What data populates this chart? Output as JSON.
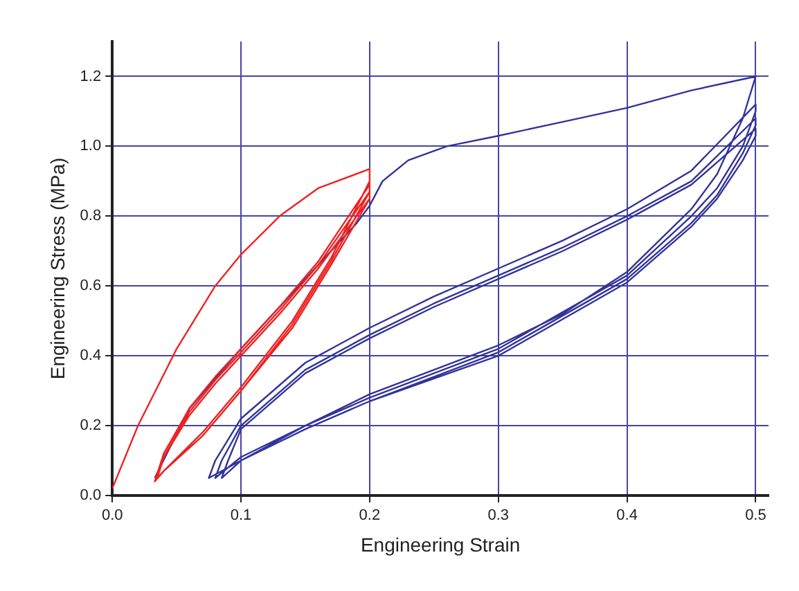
{
  "chart_data": {
    "type": "line",
    "xlabel": "Engineering Strain",
    "ylabel": "Engineering Stress (MPa)",
    "xlim": [
      0,
      0.51
    ],
    "ylim": [
      0,
      1.3
    ],
    "xticks": [
      {
        "value": 0,
        "label": "0.0"
      },
      0.1,
      0.2,
      0.3,
      0.4,
      0.5
    ],
    "yticks": [
      {
        "value": 0,
        "label": "0.0"
      },
      0.2,
      0.4,
      0.6,
      0.8,
      {
        "value": 1,
        "label": "1.0"
      },
      1.2
    ],
    "grid": true,
    "legend": false,
    "marker": "none",
    "line_style": "solid",
    "series": [
      {
        "color": "#ee2222",
        "x": [
          0,
          0.02,
          0.05,
          0.08,
          0.1,
          0.13,
          0.16,
          0.2,
          0.2,
          0.17,
          0.14,
          0.1,
          0.07,
          0.04,
          0.033,
          0.04,
          0.06,
          0.08,
          0.1,
          0.13,
          0.16,
          0.2,
          0.2,
          0.17,
          0.14,
          0.1,
          0.07,
          0.04,
          0.034,
          0.04,
          0.06,
          0.08,
          0.1,
          0.13,
          0.16,
          0.2,
          0.2,
          0.17,
          0.14,
          0.1,
          0.07,
          0.04,
          0.035,
          0.04,
          0.06,
          0.08,
          0.1,
          0.13,
          0.16,
          0.2
        ],
        "values": [
          0.02,
          0.2,
          0.42,
          0.6,
          0.69,
          0.8,
          0.88,
          0.935,
          0.9,
          0.68,
          0.5,
          0.31,
          0.18,
          0.07,
          0.04,
          0.12,
          0.25,
          0.34,
          0.42,
          0.54,
          0.67,
          0.89,
          0.87,
          0.67,
          0.49,
          0.3,
          0.17,
          0.07,
          0.045,
          0.11,
          0.24,
          0.33,
          0.41,
          0.53,
          0.66,
          0.87,
          0.85,
          0.66,
          0.48,
          0.3,
          0.17,
          0.07,
          0.05,
          0.11,
          0.23,
          0.32,
          0.4,
          0.52,
          0.65,
          0.85
        ]
      },
      {
        "color": "#333399",
        "x": [
          0.033,
          0.06,
          0.1,
          0.15,
          0.19,
          0.2,
          0.21,
          0.23,
          0.26,
          0.3,
          0.35,
          0.4,
          0.45,
          0.5,
          0.5,
          0.49,
          0.47,
          0.45,
          0.4,
          0.35,
          0.3,
          0.25,
          0.2,
          0.15,
          0.1,
          0.075,
          0.08,
          0.1,
          0.15,
          0.2,
          0.25,
          0.3,
          0.35,
          0.4,
          0.45,
          0.5,
          0.5,
          0.49,
          0.47,
          0.45,
          0.4,
          0.3,
          0.2,
          0.15,
          0.1,
          0.08,
          0.085,
          0.1,
          0.15,
          0.2,
          0.25,
          0.3,
          0.35,
          0.4,
          0.45,
          0.5,
          0.5,
          0.49,
          0.47,
          0.45,
          0.4,
          0.3,
          0.2,
          0.15,
          0.1,
          0.085,
          0.09,
          0.1,
          0.15,
          0.2,
          0.25,
          0.3,
          0.35,
          0.4,
          0.45,
          0.5,
          0.5,
          0.49,
          0.47,
          0.45,
          0.4,
          0.3,
          0.2,
          0.15,
          0.1,
          0.085
        ],
        "values": [
          0.05,
          0.25,
          0.42,
          0.62,
          0.78,
          0.83,
          0.9,
          0.96,
          1.0,
          1.03,
          1.07,
          1.11,
          1.16,
          1.2,
          1.2,
          1.08,
          0.92,
          0.82,
          0.64,
          0.52,
          0.43,
          0.36,
          0.29,
          0.2,
          0.1,
          0.05,
          0.1,
          0.22,
          0.38,
          0.48,
          0.57,
          0.65,
          0.73,
          0.82,
          0.93,
          1.12,
          1.1,
          1.0,
          0.88,
          0.8,
          0.63,
          0.42,
          0.28,
          0.2,
          0.11,
          0.05,
          0.1,
          0.2,
          0.36,
          0.46,
          0.55,
          0.63,
          0.71,
          0.8,
          0.9,
          1.08,
          1.06,
          0.98,
          0.86,
          0.78,
          0.62,
          0.41,
          0.27,
          0.19,
          0.1,
          0.05,
          0.1,
          0.19,
          0.35,
          0.45,
          0.54,
          0.62,
          0.7,
          0.79,
          0.89,
          1.05,
          1.03,
          0.96,
          0.85,
          0.77,
          0.61,
          0.4,
          0.27,
          0.19,
          0.1,
          0.05
        ]
      }
    ]
  }
}
